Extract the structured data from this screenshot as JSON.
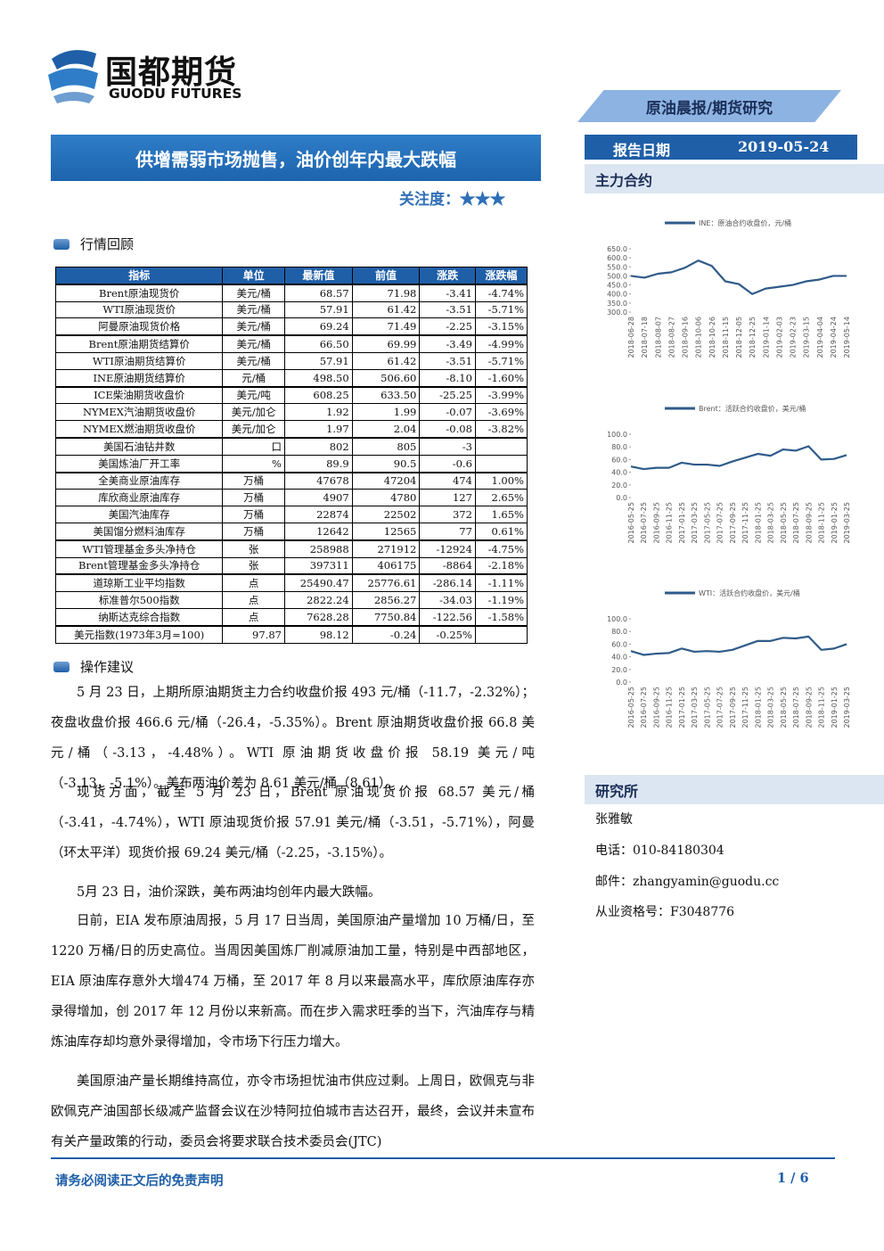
{
  "header": {
    "logo_cn": "国都期货",
    "logo_en": "GUODU FUTURES",
    "report_type": "原油晨报/期货研究",
    "report_date_label": "报告日期",
    "report_date": "2019-05-24"
  },
  "title": "供增需弱市场抛售，油价创年内最大跌幅",
  "attention": {
    "label": "关注度：",
    "stars": "★★★"
  },
  "market_review": {
    "heading": "行情回顾",
    "table": {
      "header": [
        "指标",
        "单位",
        "最新值",
        "前值",
        "涨跌",
        "涨跌幅"
      ],
      "groups": [
        [
          [
            "Brent原油现货价",
            "美元/桶",
            "68.57",
            "71.98",
            "-3.41",
            "-4.74%"
          ],
          [
            "WTI原油现货价",
            "美元/桶",
            "57.91",
            "61.42",
            "-3.51",
            "-5.71%"
          ],
          [
            "阿曼原油现货价格",
            "美元/桶",
            "69.24",
            "71.49",
            "-2.25",
            "-3.15%"
          ]
        ],
        [
          [
            "Brent原油期货结算价",
            "美元/桶",
            "66.50",
            "69.99",
            "-3.49",
            "-4.99%"
          ],
          [
            "WTI原油期货结算价",
            "美元/桶",
            "57.91",
            "61.42",
            "-3.51",
            "-5.71%"
          ],
          [
            "INE原油期货结算价",
            "元/桶",
            "498.50",
            "506.60",
            "-8.10",
            "-1.60%"
          ]
        ],
        [
          [
            "ICE柴油期货收盘价",
            "美元/吨",
            "608.25",
            "633.50",
            "-25.25",
            "-3.99%"
          ],
          [
            "NYMEX汽油期货收盘价",
            "美元/加仑",
            "1.92",
            "1.99",
            "-0.07",
            "-3.69%"
          ],
          [
            "NYMEX燃油期货收盘价",
            "美元/加仑",
            "1.97",
            "2.04",
            "-0.08",
            "-3.82%"
          ]
        ],
        [
          [
            "美国石油钻井数",
            "口",
            "802",
            "805",
            "-3"
          ],
          [
            "美国炼油厂开工率",
            "%",
            "89.9",
            "90.5",
            "-0.6"
          ]
        ],
        [
          [
            "全美商业原油库存",
            "万桶",
            "47678",
            "47204",
            "474",
            "1.00%"
          ],
          [
            "库欣商业原油库存",
            "万桶",
            "4907",
            "4780",
            "127",
            "2.65%"
          ],
          [
            "美国汽油库存",
            "万桶",
            "22874",
            "22502",
            "372",
            "1.65%"
          ],
          [
            "美国馏分燃料油库存",
            "万桶",
            "12642",
            "12565",
            "77",
            "0.61%"
          ]
        ],
        [
          [
            "WTI管理基金多头净持仓",
            "张",
            "258988",
            "271912",
            "-12924",
            "-4.75%"
          ],
          [
            "Brent管理基金多头净持仓",
            "张",
            "397311",
            "406175",
            "-8864",
            "-2.18%"
          ]
        ],
        [
          [
            "道琼斯工业平均指数",
            "点",
            "25490.47",
            "25776.61",
            "-286.14",
            "-1.11%"
          ],
          [
            "标准普尔500指数",
            "点",
            "2822.24",
            "2856.27",
            "-34.03",
            "-1.19%"
          ],
          [
            "纳斯达克综合指数",
            "点",
            "7628.28",
            "7750.84",
            "-122.56",
            "-1.58%"
          ]
        ],
        [
          [
            "美元指数(1973年3月=100)",
            "97.87",
            "98.12",
            "-0.24",
            "-0.25%"
          ]
        ]
      ]
    }
  },
  "advice": {
    "heading": "操作建议",
    "paragraphs": [
      "5 月 23 日，上期所原油期货主力合约收盘价报 493 元/桶（-11.7，-2.32%）；夜盘收盘价报 466.6 元/桶（-26.4，-5.35%）。Brent 原油期货收盘价报 66.8 美元/桶（-3.13，-4.48%）。WTI 原油期货收盘价报 58.19 美元/吨（-3.13，-5.1%）。美布两油价差为 8.61 美元/桶（8.61）。",
      "现货方面，截至 5 月 23 日，Brent 原油现货价报 68.57 美元/桶（-3.41，-4.74%），WTI 原油现货价报 57.91 美元/桶（-3.51，-5.71%），阿曼（环太平洋）现货价报 69.24 美元/桶（-2.25，-3.15%）。",
      "5月 23 日，油价深跌，美布两油均创年内最大跌幅。",
      "日前，EIA 发布原油周报，5 月 17 日当周，美国原油产量增加 10 万桶/日，至 1220 万桶/日的历史高位。当周因美国炼厂削减原油加工量，特别是中西部地区，EIA 原油库存意外大增474 万桶，至 2017 年 8 月以来最高水平，库欣原油库存亦录得增加，创 2017 年 12 月份以来新高。而在步入需求旺季的当下，汽油库存与精炼油库存却均意外录得增加，令市场下行压力增大。",
      "美国原油产量长期维持高位，亦令市场担忧油市供应过剩。上周日，欧佩克与非欧佩克产油国部长级减产监督会议在沙特阿拉伯城市吉达召开，最终，会议并未宣布有关产量政策的行动，委员会将要求联合技术委员会(JTC)"
    ]
  },
  "sidebar": {
    "contracts_heading": "主力合约",
    "research": {
      "heading": "研究所",
      "name": "张雅敏",
      "phone": "电话：010-84180304",
      "email": "邮件：zhangyamin@guodu.cc",
      "license": "从业资格号：F3048776"
    }
  },
  "chart_data": [
    {
      "type": "line",
      "categories": [
        "2018-06-28",
        "2018-07-18",
        "2018-08-07",
        "2018-08-27",
        "2018-09-16",
        "2018-10-06",
        "2018-10-26",
        "2018-11-15",
        "2018-12-05",
        "2018-12-25",
        "2019-01-14",
        "2019-02-03",
        "2019-02-23",
        "2019-03-15",
        "2019-04-04",
        "2019-04-24",
        "2019-05-14"
      ],
      "series": [
        {
          "name": "INE：原油合约收盘价，元/桶",
          "color": "#2f5b8a",
          "values": [
            500,
            490,
            512,
            520,
            545,
            585,
            555,
            470,
            455,
            400,
            430,
            440,
            450,
            470,
            480,
            500,
            500
          ]
        }
      ],
      "ylim": [
        300,
        650
      ],
      "yticks": [
        {
          "value": 300,
          "label": "300.0"
        },
        {
          "value": 350,
          "label": "350.0"
        },
        {
          "value": 400,
          "label": "400.0"
        },
        {
          "value": 450,
          "label": "450.0"
        },
        {
          "value": 500,
          "label": "500.0"
        },
        {
          "value": 550,
          "label": "550.0"
        },
        {
          "value": 600,
          "label": "600.0"
        },
        {
          "value": 650,
          "label": "650.0"
        }
      ]
    },
    {
      "type": "line",
      "categories": [
        "2016-05-25",
        "2016-07-25",
        "2016-09-25",
        "2016-11-25",
        "2017-01-25",
        "2017-03-25",
        "2017-05-25",
        "2017-07-25",
        "2017-09-25",
        "2017-11-25",
        "2018-01-25",
        "2018-03-25",
        "2018-05-25",
        "2018-07-25",
        "2018-09-25",
        "2018-11-25",
        "2019-01-25",
        "2019-03-25"
      ],
      "series": [
        {
          "name": "Brent：活跃合约收盘价，美元/桶",
          "color": "#2f5b8a",
          "values": [
            49,
            45,
            47,
            47,
            55,
            52,
            52,
            50,
            57,
            63,
            69,
            66,
            76,
            74,
            81,
            60,
            61,
            67
          ]
        }
      ],
      "ylim": [
        0,
        100
      ],
      "yticks": [
        {
          "value": 0,
          "label": "0.0"
        },
        {
          "value": 20,
          "label": "20.0"
        },
        {
          "value": 40,
          "label": "40.0"
        },
        {
          "value": 60,
          "label": "60.0"
        },
        {
          "value": 80,
          "label": "80.0"
        },
        {
          "value": 100,
          "label": "100.0"
        }
      ]
    },
    {
      "type": "line",
      "categories": [
        "2016-05-25",
        "2016-07-25",
        "2016-09-25",
        "2016-11-25",
        "2017-01-25",
        "2017-03-25",
        "2017-05-25",
        "2017-07-25",
        "2017-09-25",
        "2017-11-25",
        "2018-01-25",
        "2018-03-25",
        "2018-05-25",
        "2018-07-25",
        "2018-09-25",
        "2018-11-25",
        "2019-01-25",
        "2019-03-25"
      ],
      "series": [
        {
          "name": "WTI：活跃合约收盘价，美元/桶",
          "color": "#2f5b8a",
          "values": [
            49,
            43,
            45,
            46,
            53,
            48,
            49,
            48,
            51,
            58,
            65,
            65,
            70,
            69,
            72,
            51,
            53,
            60
          ]
        }
      ],
      "ylim": [
        0,
        100
      ],
      "yticks": [
        {
          "value": 0,
          "label": "0.0"
        },
        {
          "value": 20,
          "label": "20.0"
        },
        {
          "value": 40,
          "label": "40.0"
        },
        {
          "value": 60,
          "label": "60.0"
        },
        {
          "value": 80,
          "label": "80.0"
        },
        {
          "value": 100,
          "label": "100.0"
        }
      ]
    }
  ],
  "footer": {
    "disclaimer": "请务必阅读正文后的免责声明",
    "page": "1 / 6"
  }
}
